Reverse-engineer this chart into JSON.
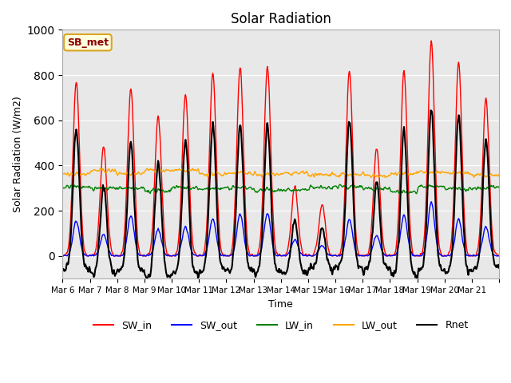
{
  "title": "Solar Radiation",
  "ylabel": "Solar Radiation (W/m2)",
  "xlabel": "Time",
  "annotation": "SB_met",
  "ylim": [
    -100,
    1000
  ],
  "legend_entries": [
    "SW_in",
    "SW_out",
    "LW_in",
    "LW_out",
    "Rnet"
  ],
  "legend_colors": [
    "red",
    "blue",
    "green",
    "orange",
    "black"
  ],
  "xtick_labels": [
    "Mar 6",
    "Mar 7",
    "Mar 8",
    "Mar 9",
    "Mar 10",
    "Mar 11",
    "Mar 12",
    "Mar 13",
    "Mar 14",
    "Mar 15",
    "Mar 16",
    "Mar 17",
    "Mar 18",
    "Mar 19",
    "Mar 20",
    "Mar 21",
    ""
  ],
  "sw_peaks": [
    775,
    490,
    740,
    620,
    720,
    810,
    840,
    840,
    310,
    230,
    820,
    480,
    820,
    950,
    860,
    700
  ],
  "n_days": 16,
  "points_per_day": 48
}
